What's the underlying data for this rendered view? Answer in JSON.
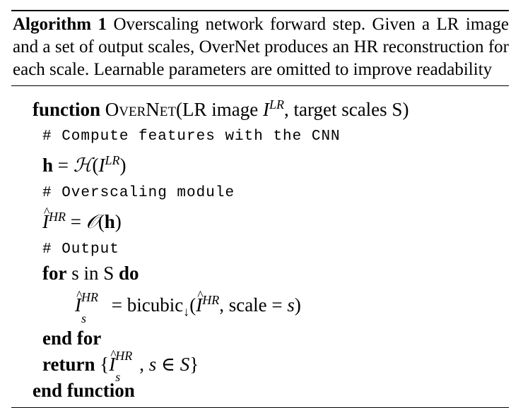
{
  "caption": {
    "label": "Algorithm 1",
    "text": " Overscaling network forward step.  Given a LR image and a set of output scales, OverNet produces an HR reconstruction for each scale.  Learnable parameters are omitted to improve readability"
  },
  "code": {
    "function_kw": "function",
    "function_name": "OverNet",
    "signature_open": "(LR image ",
    "signature_I": "I",
    "signature_LR": "LR",
    "signature_rest": ", target scales S)",
    "comment_features": "# Compute features with the CNN",
    "h_var": "h",
    "h_eq": " = ",
    "h_H": "ℋ",
    "h_paren_open": "(",
    "h_I": "I",
    "h_LR": "LR",
    "h_paren_close": ")",
    "comment_overscale": "# Overscaling module",
    "o_I": "I",
    "o_HR": "HR",
    "o_eq": " = ",
    "o_O": "𝒪",
    "o_paren_open": "(",
    "o_h": "h",
    "o_paren_close": ")",
    "comment_output": "# Output",
    "for_kw": "for",
    "for_mid": " s in S ",
    "do_kw": "do",
    "b_I": "I",
    "b_s": "s",
    "b_HR": "HR",
    "b_eq": " = bicubic",
    "b_down": "↓",
    "b_args_open": "(",
    "b_arg_I": "I",
    "b_arg_HR": "HR",
    "b_args_rest": ", scale = ",
    "b_arg_s": "s",
    "b_args_close": ")",
    "end_for_kw": "end for",
    "return_kw": "return",
    "ret_open": " {",
    "ret_I": "I",
    "ret_s": "s",
    "ret_HR": "HR",
    "ret_mid": ", ",
    "ret_s2": "s",
    "ret_in": " ∈ ",
    "ret_S": "S",
    "ret_close": "}",
    "end_function_kw": "end function"
  }
}
